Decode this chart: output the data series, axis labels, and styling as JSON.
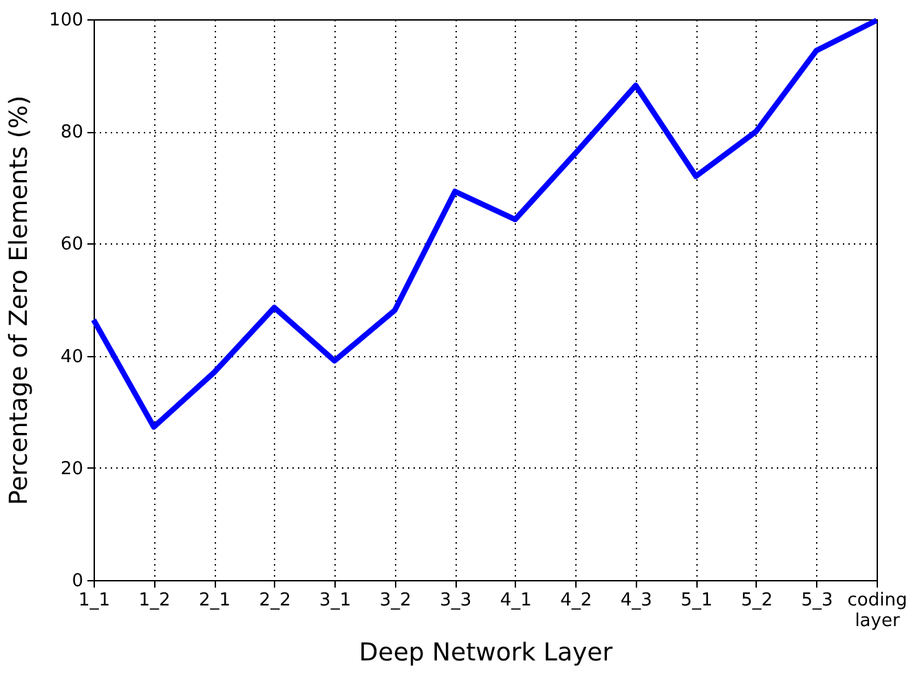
{
  "chart_data": {
    "type": "line",
    "xlabel": "Deep Network Layer",
    "ylabel": "Percentage of Zero Elements (%)",
    "categories": [
      "1_1",
      "1_2",
      "2_1",
      "2_2",
      "3_1",
      "3_2",
      "3_3",
      "4_1",
      "4_2",
      "4_3",
      "5_1",
      "5_2",
      "5_3",
      "coding layer"
    ],
    "series": [
      {
        "color": "#0000ff",
        "values": [
          46.4,
          27.3,
          37,
          48.6,
          39.1,
          48.1,
          69.3,
          64.3,
          76.1,
          88.2,
          72,
          80,
          94.4,
          99.8
        ]
      }
    ],
    "ylim": [
      0,
      100
    ],
    "yticks": [
      0,
      20,
      40,
      60,
      80,
      100
    ],
    "grid": true,
    "marker": "none",
    "line_style": "solid"
  }
}
